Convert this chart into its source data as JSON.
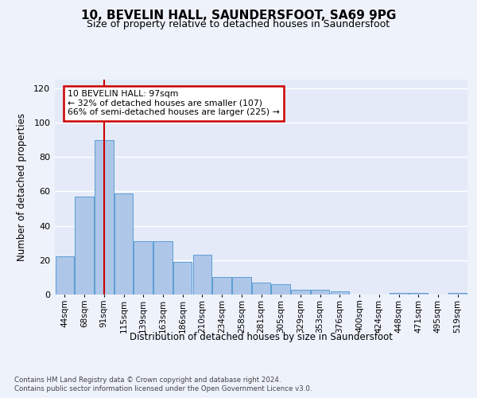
{
  "title_line1": "10, BEVELIN HALL, SAUNDERSFOOT, SA69 9PG",
  "title_line2": "Size of property relative to detached houses in Saundersfoot",
  "xlabel": "Distribution of detached houses by size in Saundersfoot",
  "ylabel": "Number of detached properties",
  "annotation_line1": "10 BEVELIN HALL: 97sqm",
  "annotation_line2": "← 32% of detached houses are smaller (107)",
  "annotation_line3": "66% of semi-detached houses are larger (225) →",
  "footer_line1": "Contains HM Land Registry data © Crown copyright and database right 2024.",
  "footer_line2": "Contains public sector information licensed under the Open Government Licence v3.0.",
  "bar_labels": [
    "44sqm",
    "68sqm",
    "91sqm",
    "115sqm",
    "139sqm",
    "163sqm",
    "186sqm",
    "210sqm",
    "234sqm",
    "258sqm",
    "281sqm",
    "305sqm",
    "329sqm",
    "353sqm",
    "376sqm",
    "400sqm",
    "424sqm",
    "448sqm",
    "471sqm",
    "495sqm",
    "519sqm"
  ],
  "bar_values": [
    22,
    57,
    90,
    59,
    31,
    31,
    19,
    23,
    10,
    10,
    7,
    6,
    3,
    3,
    2,
    0,
    0,
    1,
    1,
    0,
    1
  ],
  "bar_color": "#aec6e8",
  "bar_edge_color": "#5a9fd4",
  "vline_x": 2,
  "vline_color": "#cc0000",
  "ylim": [
    0,
    125
  ],
  "yticks": [
    0,
    20,
    40,
    60,
    80,
    100,
    120
  ],
  "bg_color": "#eef2fb",
  "plot_bg_color": "#e4eaf8",
  "grid_color": "#ffffff",
  "annotation_box_edge_color": "#cc0000",
  "annotation_box_bg": "#ffffff"
}
